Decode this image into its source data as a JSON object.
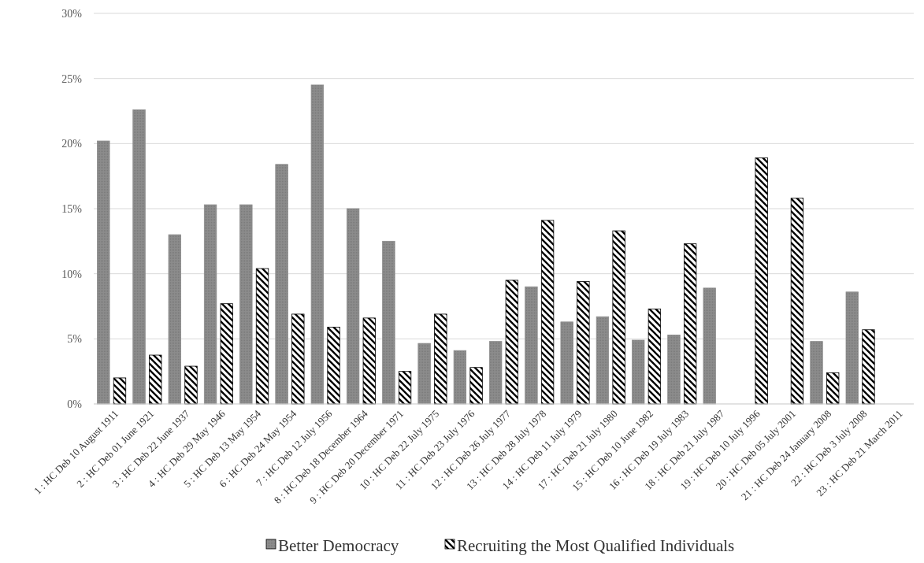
{
  "chart_data": {
    "type": "bar",
    "categories": [
      "1 : HC Deb 10 August 1911",
      "2 : HC Deb 01 June 1921",
      "3 : HC Deb 22 June 1937",
      "4 : HC Deb 29 May 1946",
      "5 : HC Deb 13 May 1954",
      "6 : HC Deb 24 May 1954",
      "7 : HC Deb 12 July 1956",
      "8 : HC Deb 18 December 1964",
      "9 : HC Deb 20 December 1971",
      "10 : HC Deb 22 July 1975",
      "11 : HC Deb 23 July 1976",
      "12 : HC Deb 26 July 1977",
      "13 : HC Deb 28 July 1978",
      "14 : HC Deb 11 July 1979",
      "17 : HC Deb 21 July 1980",
      "15 : HC Deb 10 June 1982",
      "16 : HC Deb 19 July 1983",
      "18 : HC Deb 21 July 1987",
      "19 : HC Deb 10 July 1996",
      "20 : HC Deb 05 July 2001",
      "21 : HC Deb 24 January 2008",
      "22 : HC Deb 3 July 2008",
      "23 : HC Deb 21 March 2011"
    ],
    "series": [
      {
        "name": "Better Democracy",
        "color": "#8c8c8c",
        "values": [
          20.2,
          22.6,
          13.0,
          15.3,
          15.3,
          18.4,
          24.5,
          15.0,
          12.5,
          4.65,
          4.1,
          4.8,
          9.0,
          6.3,
          6.7,
          4.9,
          5.3,
          8.9,
          null,
          null,
          4.8,
          8.6,
          null
        ]
      },
      {
        "name": "Recruiting the Most Qualified Individuals",
        "color": "#000000",
        "values": [
          2.0,
          3.75,
          2.9,
          7.7,
          10.4,
          6.9,
          5.9,
          6.6,
          2.5,
          6.9,
          2.8,
          9.5,
          14.1,
          9.4,
          13.3,
          7.3,
          12.3,
          null,
          18.9,
          15.8,
          2.4,
          5.7,
          null
        ]
      }
    ],
    "ylim": [
      0,
      30
    ],
    "yticks": [
      {
        "value": 0,
        "label": "0%"
      },
      {
        "value": 5,
        "label": "5%"
      },
      {
        "value": 10,
        "label": "10%"
      },
      {
        "value": 15,
        "label": "15%"
      },
      {
        "value": 20,
        "label": "20%"
      },
      {
        "value": 25,
        "label": "25%"
      },
      {
        "value": 30,
        "label": "30%"
      }
    ],
    "grid": "y",
    "legend": "bottom"
  }
}
